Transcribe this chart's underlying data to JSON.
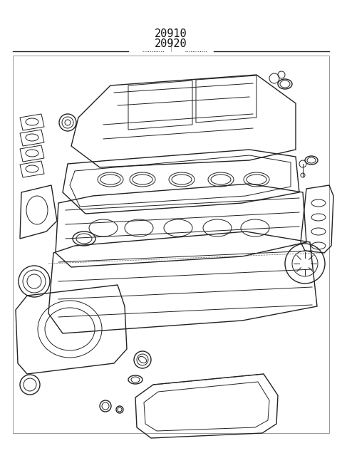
{
  "title_line1": "20910",
  "title_line2": "20920",
  "bg_color": "#ffffff",
  "line_color": "#222222",
  "title_color": "#111111",
  "border_color": "#555555",
  "fig_width": 4.8,
  "fig_height": 6.57,
  "dpi": 100
}
